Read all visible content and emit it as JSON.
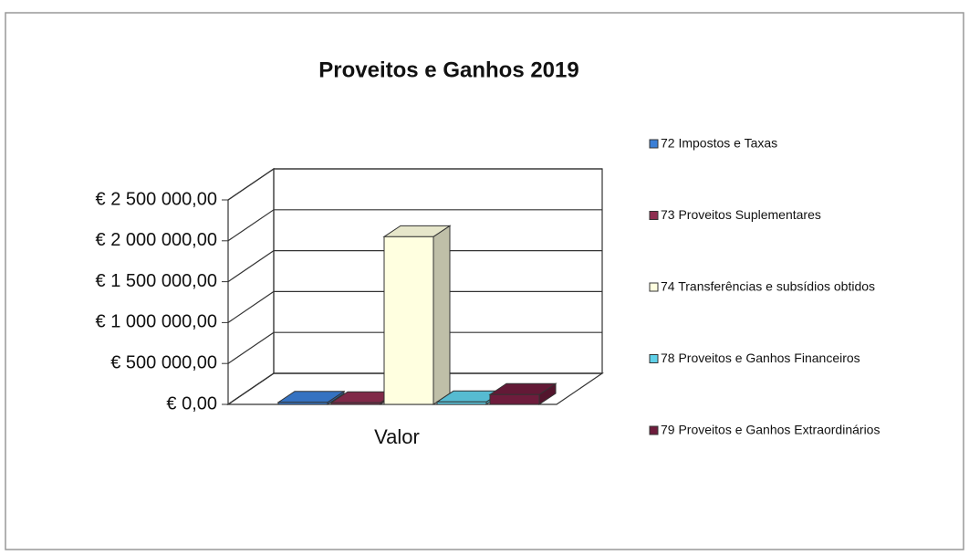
{
  "chart_data": {
    "type": "bar3d",
    "title": "Proveitos e Ganhos 2019",
    "categories": [
      "Valor"
    ],
    "series": [
      {
        "name": "72 Impostos e Taxas",
        "color": "#3b7fd6",
        "values": [
          25000
        ]
      },
      {
        "name": "73 Proveitos Suplementares",
        "color": "#8e2e50",
        "values": [
          20000
        ]
      },
      {
        "name": "74 Transferências e subsídios obtidos",
        "color": "#ffffe0",
        "values": [
          2050000
        ]
      },
      {
        "name": "78 Proveitos e Ganhos Financeiros",
        "color": "#5fd0e8",
        "values": [
          30000
        ]
      },
      {
        "name": "79 Proveitos e Ganhos Extraordinários",
        "color": "#6e1c3c",
        "values": [
          120000
        ]
      }
    ],
    "ylim": [
      0,
      2500000
    ],
    "yticks": [
      {
        "value": 0,
        "label": "€ 0,00"
      },
      {
        "value": 500000,
        "label": "€ 500 000,00"
      },
      {
        "value": 1000000,
        "label": "€ 1 000 000,00"
      },
      {
        "value": 1500000,
        "label": "€ 1 500 000,00"
      },
      {
        "value": 2000000,
        "label": "€ 2 000 000,00"
      },
      {
        "value": 2500000,
        "label": "€ 2 500 000,00"
      }
    ],
    "grid": true,
    "legend": "right"
  }
}
